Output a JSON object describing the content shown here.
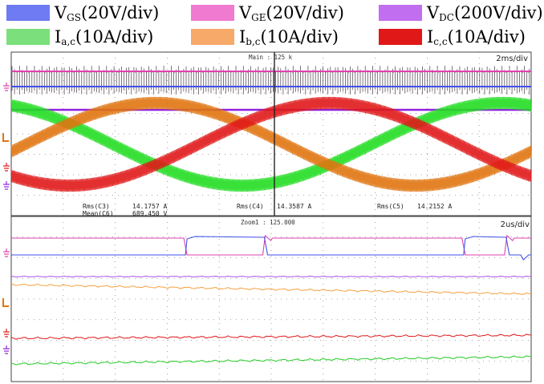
{
  "legend": [
    {
      "sym": "V",
      "sub": "GS",
      "unit": "(20V/div)",
      "color": "#6e7bf2"
    },
    {
      "sym": "V",
      "sub": "GE",
      "unit": "(20V/div)",
      "color": "#f07ad0"
    },
    {
      "sym": "V",
      "sub": "DC",
      "unit": "(200V/div)",
      "color": "#c26ef0"
    },
    {
      "sym": "I",
      "sub": "a,c",
      "unit": "(10A/div)",
      "color": "#7be07b"
    },
    {
      "sym": "I",
      "sub": "b,c",
      "unit": "(10A/div)",
      "color": "#f7a96a"
    },
    {
      "sym": "I",
      "sub": "c,c",
      "unit": "(10A/div)",
      "color": "#e01818"
    }
  ],
  "chart_data": [
    {
      "type": "line",
      "panel": "main",
      "timebase": "2ms/div",
      "header": "Main : 125 k",
      "x_divisions": 10,
      "xlim_ms": [
        0,
        20
      ],
      "series": [
        {
          "name": "Ia,c",
          "color": "#22dd22",
          "amplitude_A": 20.2,
          "period_ms": 20,
          "phase_deg": 110,
          "offset_div": 0
        },
        {
          "name": "Ib,c",
          "color": "#e07410",
          "amplitude_A": 20.2,
          "period_ms": 20,
          "phase_deg": -10,
          "offset_div": 0
        },
        {
          "name": "Ic,c",
          "color": "#e01818",
          "amplitude_A": 20.2,
          "period_ms": 20,
          "phase_deg": 230,
          "offset_div": 0
        },
        {
          "name": "VGS",
          "color": "#4050e8",
          "kind": "gate"
        },
        {
          "name": "VGE",
          "color": "#e040b0",
          "kind": "gate"
        },
        {
          "name": "VDC",
          "color": "#9020e0",
          "kind": "dc"
        }
      ],
      "measurements": [
        {
          "label": "Rms(C3)",
          "value": "14.1757 A"
        },
        {
          "label": "Mean(C6)",
          "value": "689.450 V"
        },
        {
          "label": "Rms(C4)",
          "value": "14.3587 A"
        },
        {
          "label": "Rms(C5)",
          "value": "14.2152 A"
        }
      ]
    },
    {
      "type": "line",
      "panel": "zoom",
      "timebase": "2us/div",
      "header": "Zoom1 : 125.000",
      "x_divisions": 10,
      "xlim_us": [
        0,
        20
      ],
      "series": [
        {
          "name": "VGS",
          "color": "#4050e8",
          "pulses_us": [
            [
              6.7,
              9.8
            ],
            [
              17.4,
              19.1
            ]
          ]
        },
        {
          "name": "VGE",
          "color": "#e040b0"
        },
        {
          "name": "VDC",
          "color": "#b050e8"
        },
        {
          "name": "Ib,c",
          "color": "#f7a040"
        },
        {
          "name": "Ic,c",
          "color": "#e01818"
        },
        {
          "name": "Ia,c",
          "color": "#22cc22"
        }
      ]
    }
  ]
}
